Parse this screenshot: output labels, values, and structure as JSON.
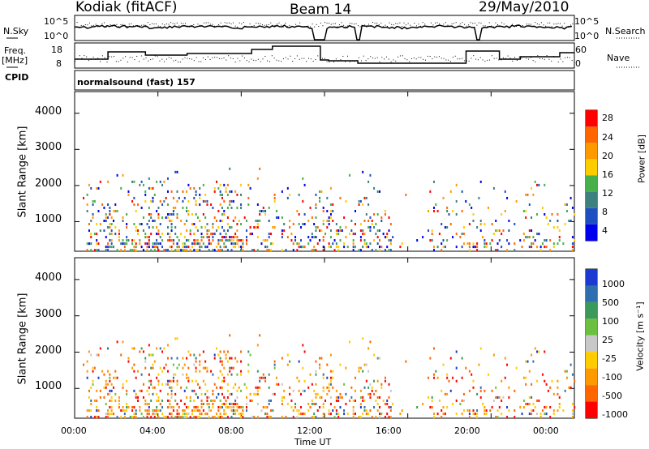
{
  "header": {
    "station": "Kodiak (fitACF)",
    "beam": "Beam 14",
    "date": "29/May/2010"
  },
  "strip_labels": {
    "n_sky": "N.Sky",
    "n_search": "N.Search",
    "freq_line1": "Freq.",
    "freq_line2": "[MHz]",
    "nave": "Nave",
    "cpid": "CPID",
    "cpid_value": "normalsound (fast) 157"
  },
  "strip_ticks": {
    "noise_left": [
      "10^5",
      "10^0"
    ],
    "noise_right": [
      "10^5",
      "10^0"
    ],
    "freq_left": [
      "18",
      "8"
    ],
    "nave_right": [
      "60",
      "0"
    ]
  },
  "chart_data": [
    {
      "type": "heatmap",
      "name": "power-panel",
      "ylabel": "Slant Range [km]",
      "ylim": [
        180,
        4600
      ],
      "yticks": [
        "4000",
        "3000",
        "2000",
        "1000"
      ],
      "colorbar": {
        "label": "Power [dB]",
        "ticks": [
          "28",
          "24",
          "20",
          "16",
          "12",
          "8",
          "4"
        ],
        "range": [
          0,
          30
        ]
      },
      "colors": [
        "#0000ee",
        "#1e4fc0",
        "#3d8080",
        "#46b04a",
        "#ffcc00",
        "#ff9900",
        "#ff6600",
        "#ff0000"
      ]
    },
    {
      "type": "heatmap",
      "name": "velocity-panel",
      "ylabel": "Slant Range [km]",
      "ylim": [
        180,
        4600
      ],
      "yticks": [
        "4000",
        "3000",
        "2000",
        "1000"
      ],
      "colorbar": {
        "label": "Velocity [m s⁻¹]",
        "ticks": [
          "1000",
          "500",
          "100",
          "25",
          "-25",
          "-100",
          "-500",
          "-1000"
        ],
        "range": [
          -1000,
          1000
        ]
      },
      "colors": [
        "#1a3ad0",
        "#2f6fb0",
        "#3a9a5a",
        "#6cc040",
        "#c8c8c8",
        "#ffcc00",
        "#ff9900",
        "#ff6600",
        "#ff0000"
      ]
    }
  ],
  "x_axis": {
    "label": "Time UT",
    "ticks": [
      "00:00",
      "04:00",
      "08:00",
      "12:00",
      "16:00",
      "20:00",
      "00:00"
    ]
  }
}
